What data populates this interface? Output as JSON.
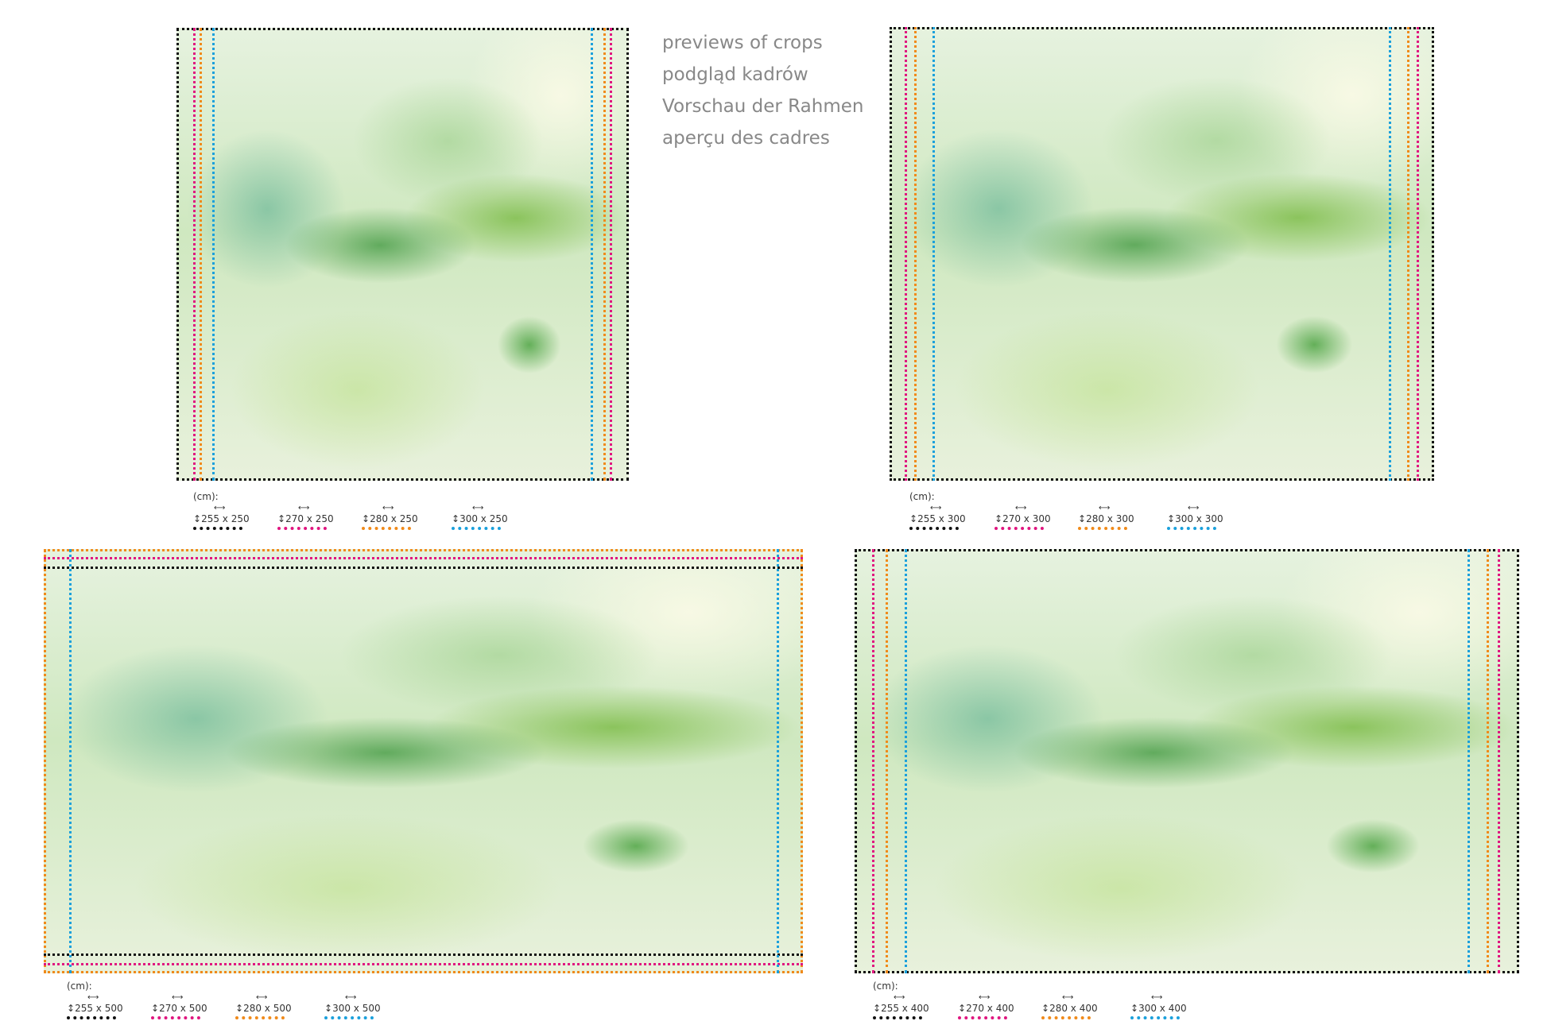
{
  "caption": [
    "previews of crops",
    "podgląd kadrów",
    "Vorschau der Rahmen",
    "aperçu des cadres"
  ],
  "colors": {
    "black": "#111111",
    "magenta": "#e0157f",
    "orange": "#f08a1a",
    "blue": "#1aa0dc"
  },
  "unit": "(cm):",
  "icons": {
    "height": "vertical-double-arrow-icon",
    "width": "horizontal-double-arrow-icon"
  },
  "panels": [
    {
      "sizes": [
        "255 x 250",
        "270 x 250",
        "280 x 250",
        "300 x 250"
      ]
    },
    {
      "sizes": [
        "255 x 300",
        "270 x 300",
        "280 x 300",
        "300 x 300"
      ]
    },
    {
      "sizes": [
        "255 x 500",
        "270 x 500",
        "280 x 500",
        "300 x 500"
      ]
    },
    {
      "sizes": [
        "255 x 400",
        "270 x 400",
        "280 x 400",
        "300 x 400"
      ]
    }
  ]
}
